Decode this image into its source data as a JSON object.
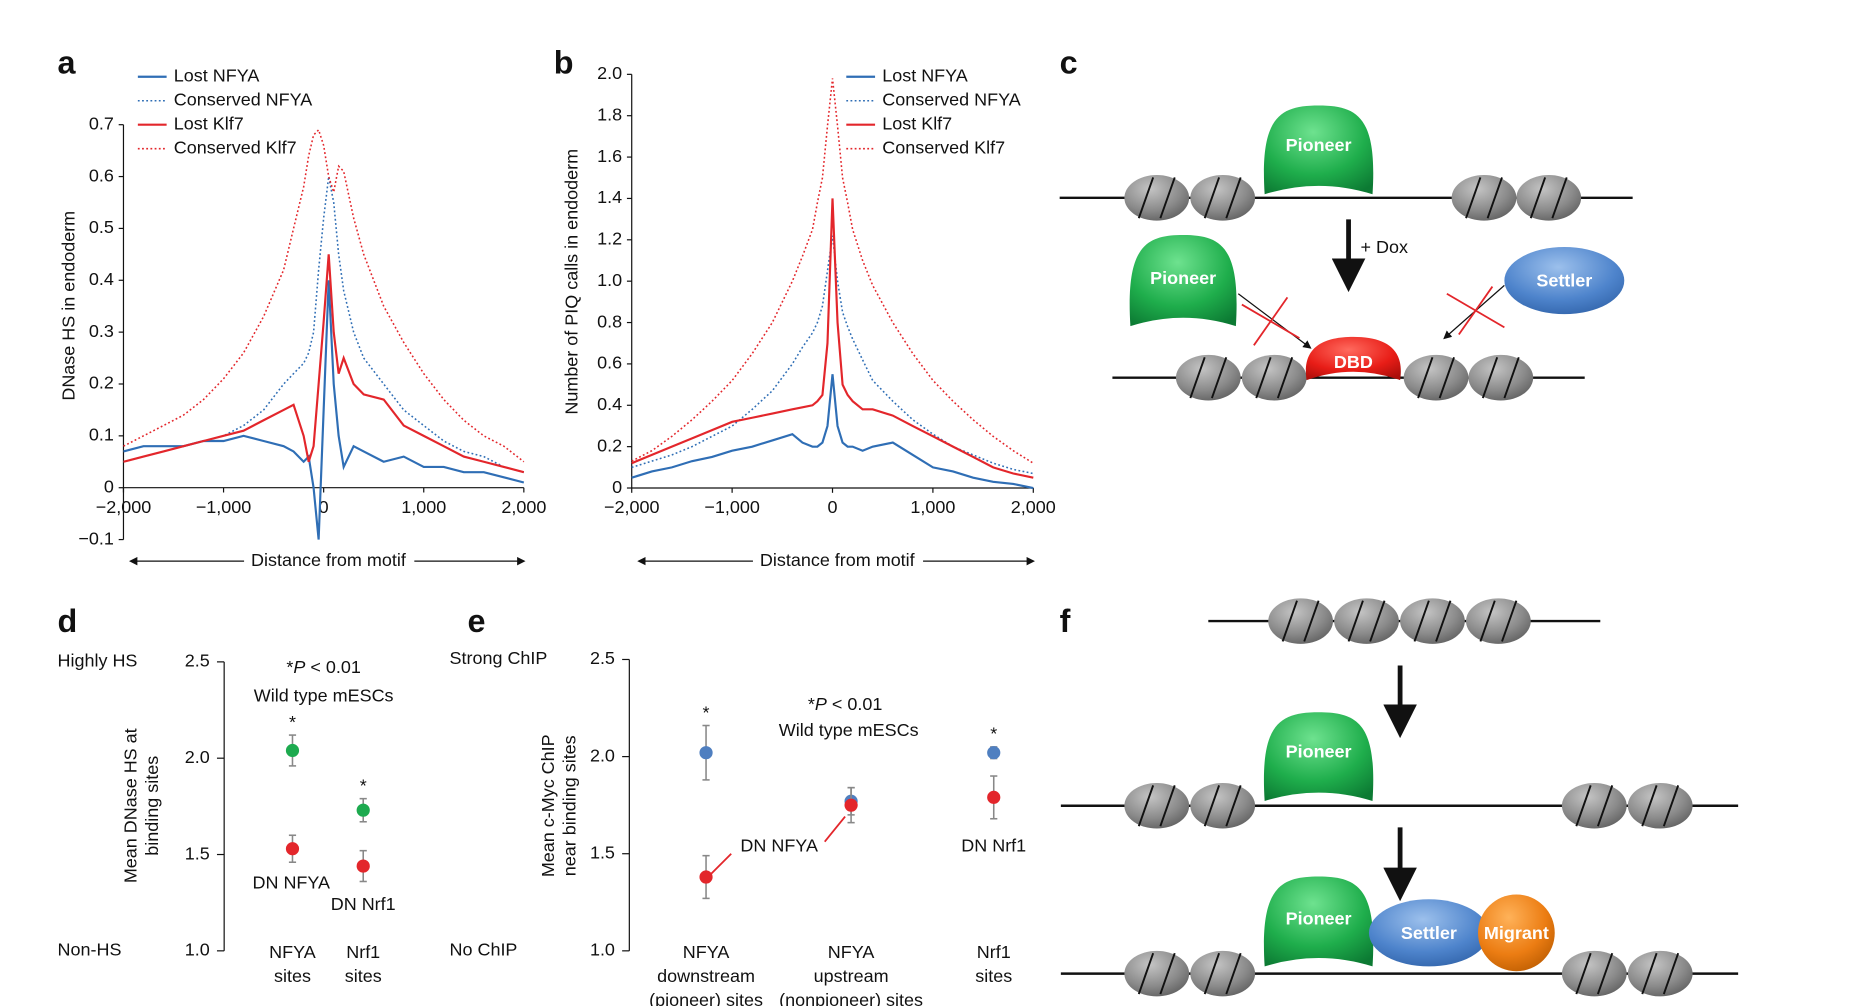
{
  "chart_data": [
    {
      "type": "line",
      "panel": "a",
      "ylabel": "DNase HS in endoderm",
      "xlabel": "Distance from motif",
      "x": [
        -2000,
        -1800,
        -1600,
        -1400,
        -1200,
        -1000,
        -800,
        -600,
        -400,
        -300,
        -200,
        -150,
        -100,
        -50,
        0,
        50,
        100,
        150,
        200,
        300,
        400,
        600,
        800,
        1000,
        1200,
        1400,
        1600,
        1800,
        2000
      ],
      "xlim": [
        -2000,
        2000
      ],
      "xticks": [
        {
          "value": -2000,
          "label": "−2,000"
        },
        {
          "value": -1000,
          "label": "−1,000"
        },
        0,
        {
          "value": 1000,
          "label": "1,000"
        },
        {
          "value": 2000,
          "label": "2,000"
        }
      ],
      "ylim": [
        -0.1,
        0.7
      ],
      "yticks": [
        {
          "value": -0.1,
          "label": "−0.1"
        },
        0,
        0.1,
        0.2,
        0.3,
        0.4,
        0.5,
        0.6,
        0.7
      ],
      "series": [
        {
          "name": "Lost NFYA",
          "color": "#2f6eb5",
          "style": "solid",
          "values": [
            0.07,
            0.08,
            0.08,
            0.08,
            0.09,
            0.09,
            0.1,
            0.09,
            0.08,
            0.07,
            0.05,
            0.06,
            0.0,
            -0.1,
            0.15,
            0.4,
            0.2,
            0.1,
            0.04,
            0.08,
            0.07,
            0.05,
            0.06,
            0.04,
            0.04,
            0.03,
            0.03,
            0.02,
            0.01
          ]
        },
        {
          "name": "Conserved NFYA",
          "color": "#2f6eb5",
          "style": "dotted",
          "values": [
            0.05,
            0.06,
            0.07,
            0.08,
            0.09,
            0.1,
            0.12,
            0.15,
            0.2,
            0.22,
            0.24,
            0.26,
            0.3,
            0.42,
            0.52,
            0.6,
            0.55,
            0.45,
            0.38,
            0.3,
            0.25,
            0.2,
            0.15,
            0.12,
            0.09,
            0.07,
            0.06,
            0.04,
            0.03
          ]
        },
        {
          "name": "Lost Klf7",
          "color": "#e3262b",
          "style": "solid",
          "values": [
            0.05,
            0.06,
            0.07,
            0.08,
            0.09,
            0.1,
            0.11,
            0.13,
            0.15,
            0.16,
            0.1,
            0.05,
            0.08,
            0.2,
            0.32,
            0.45,
            0.3,
            0.22,
            0.25,
            0.2,
            0.18,
            0.17,
            0.12,
            0.1,
            0.08,
            0.06,
            0.05,
            0.04,
            0.03
          ]
        },
        {
          "name": "Conserved Klf7",
          "color": "#e3262b",
          "style": "dotted",
          "values": [
            0.08,
            0.1,
            0.12,
            0.14,
            0.17,
            0.21,
            0.26,
            0.33,
            0.42,
            0.5,
            0.58,
            0.64,
            0.68,
            0.69,
            0.66,
            0.6,
            0.57,
            0.62,
            0.61,
            0.52,
            0.45,
            0.35,
            0.28,
            0.22,
            0.17,
            0.13,
            0.1,
            0.08,
            0.05
          ]
        }
      ]
    },
    {
      "type": "line",
      "panel": "b",
      "ylabel": "Number of PIQ calls in endoderm",
      "xlabel": "Distance from motif",
      "x": [
        -2000,
        -1800,
        -1600,
        -1400,
        -1200,
        -1000,
        -800,
        -600,
        -400,
        -300,
        -200,
        -150,
        -100,
        -50,
        0,
        50,
        100,
        150,
        200,
        300,
        400,
        600,
        800,
        1000,
        1200,
        1400,
        1600,
        1800,
        2000
      ],
      "xlim": [
        -2000,
        2000
      ],
      "xticks": [
        {
          "value": -2000,
          "label": "−2,000"
        },
        {
          "value": -1000,
          "label": "−1,000"
        },
        0,
        {
          "value": 1000,
          "label": "1,000"
        },
        {
          "value": 2000,
          "label": "2,000"
        }
      ],
      "ylim": [
        0,
        2.0
      ],
      "yticks": [
        0,
        0.2,
        0.4,
        0.6,
        0.8,
        {
          "value": 1.0,
          "label": "1.0"
        },
        1.2,
        1.4,
        1.6,
        1.8,
        {
          "value": 2.0,
          "label": "2.0"
        }
      ],
      "series": [
        {
          "name": "Lost NFYA",
          "color": "#2f6eb5",
          "style": "solid",
          "values": [
            0.05,
            0.08,
            0.1,
            0.13,
            0.15,
            0.18,
            0.2,
            0.23,
            0.26,
            0.22,
            0.2,
            0.2,
            0.22,
            0.3,
            0.55,
            0.3,
            0.22,
            0.2,
            0.2,
            0.18,
            0.2,
            0.22,
            0.16,
            0.1,
            0.08,
            0.05,
            0.03,
            0.02,
            0.0
          ]
        },
        {
          "name": "Conserved NFYA",
          "color": "#2f6eb5",
          "style": "dotted",
          "values": [
            0.1,
            0.13,
            0.16,
            0.2,
            0.25,
            0.3,
            0.38,
            0.47,
            0.6,
            0.68,
            0.75,
            0.8,
            0.88,
            1.05,
            1.22,
            1.0,
            0.85,
            0.78,
            0.72,
            0.62,
            0.52,
            0.42,
            0.33,
            0.26,
            0.2,
            0.16,
            0.12,
            0.09,
            0.07
          ]
        },
        {
          "name": "Lost Klf7",
          "color": "#e3262b",
          "style": "solid",
          "values": [
            0.12,
            0.16,
            0.2,
            0.24,
            0.28,
            0.32,
            0.34,
            0.36,
            0.38,
            0.39,
            0.4,
            0.42,
            0.45,
            0.7,
            1.4,
            0.8,
            0.5,
            0.45,
            0.42,
            0.38,
            0.38,
            0.35,
            0.3,
            0.25,
            0.2,
            0.15,
            0.1,
            0.07,
            0.05
          ]
        },
        {
          "name": "Conserved Klf7",
          "color": "#e3262b",
          "style": "dotted",
          "values": [
            0.13,
            0.18,
            0.25,
            0.33,
            0.42,
            0.52,
            0.65,
            0.8,
            1.0,
            1.12,
            1.25,
            1.38,
            1.5,
            1.75,
            1.98,
            1.75,
            1.5,
            1.38,
            1.25,
            1.1,
            0.98,
            0.8,
            0.65,
            0.52,
            0.42,
            0.33,
            0.25,
            0.18,
            0.12
          ]
        }
      ]
    },
    {
      "type": "dot",
      "panel": "d",
      "ylabel": [
        "Mean DNase HS at",
        "binding sites"
      ],
      "side_labels": [
        "Non-HS",
        "Highly HS"
      ],
      "note": [
        "*",
        "P",
        " < 0.01"
      ],
      "categories": [
        [
          "NFYA",
          "sites"
        ],
        [
          "Nrf1",
          "sites"
        ]
      ],
      "ylim": [
        1.0,
        2.5
      ],
      "yticks": [
        {
          "value": 1.0,
          "label": "1.0"
        },
        1.5,
        {
          "value": 2.0,
          "label": "2.0"
        },
        2.5
      ],
      "series": [
        {
          "name": "Wild type mESCs",
          "color": "#1daa4f",
          "values": [
            2.04,
            1.73
          ],
          "errors": [
            0.08,
            0.06
          ],
          "stars": [
            "*",
            "*"
          ]
        },
        {
          "color": "#e3262b",
          "values": [
            1.53,
            1.44
          ],
          "errors": [
            0.07,
            0.08
          ],
          "point_labels": [
            "DN NFYA",
            "DN Nrf1"
          ]
        }
      ]
    },
    {
      "type": "dot",
      "panel": "e",
      "ylabel": [
        "Mean c-Myc ChIP",
        "near binding sites"
      ],
      "side_labels": [
        "No ChIP",
        "Strong ChIP"
      ],
      "note": [
        "*",
        "P",
        " < 0.01"
      ],
      "categories": [
        [
          "NFYA",
          "downstream",
          "(pioneer) sites"
        ],
        [
          "NFYA",
          "upstream",
          "(nonpioneer) sites"
        ],
        [
          "Nrf1",
          "sites"
        ]
      ],
      "ylim": [
        1.0,
        2.5
      ],
      "yticks": [
        {
          "value": 1.0,
          "label": "1.0"
        },
        1.5,
        {
          "value": 2.0,
          "label": "2.0"
        },
        2.5
      ],
      "series": [
        {
          "name": "Wild type mESCs",
          "color": "#4f7fc0",
          "values": [
            2.02,
            1.77,
            2.02
          ],
          "errors": [
            0.14,
            0.07,
            0.03
          ],
          "stars": [
            "*",
            null,
            "*"
          ]
        },
        {
          "color": "#e3262b",
          "values": [
            1.38,
            1.75,
            1.79
          ],
          "errors": [
            0.11,
            0.09,
            0.11
          ],
          "point_labels": [
            "DN NFYA",
            null,
            "DN Nrf1"
          ]
        }
      ]
    }
  ],
  "diagrams": {
    "c": {
      "label": "c",
      "pioneer_top": "Pioneer",
      "dox": "+ Dox",
      "pioneer_left": "Pioneer",
      "settler": "Settler",
      "dbd": "DBD"
    },
    "f": {
      "label": "f",
      "pioneer_1": "Pioneer",
      "pioneer_2": "Pioneer",
      "settler": "Settler",
      "migrant": "Migrant"
    }
  }
}
